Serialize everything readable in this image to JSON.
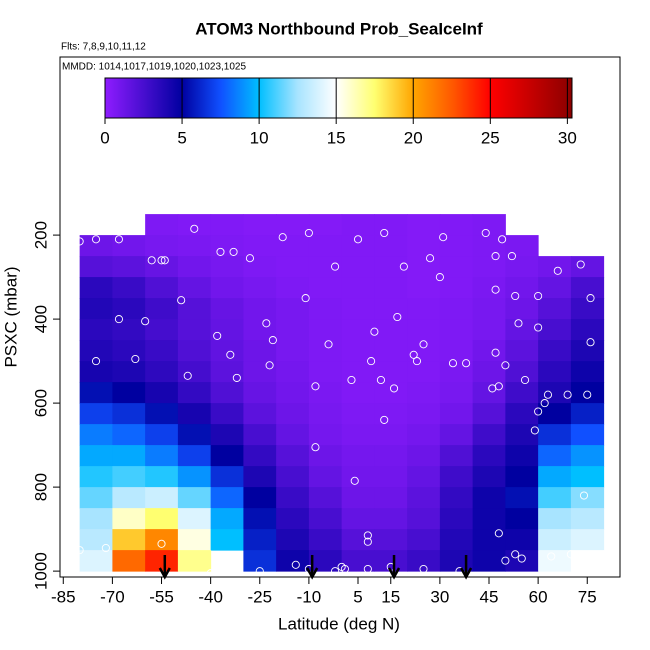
{
  "chart_data": {
    "type": "heatmap",
    "title": "ATOM3 Northbound Prob_SeaIceInf",
    "subtitle": "Flts: 7,8,9,10,11,12",
    "note": "MMDD: 1014,1017,1019,1020,1023,1025",
    "x_label": "Latitude (deg N)",
    "y_label": "PSXC (mbar)",
    "xlim": [
      -86,
      85
    ],
    "ylim": [
      1014,
      -224
    ],
    "xticks": [
      -85,
      -70,
      -55,
      -40,
      -25,
      -10,
      5,
      15,
      30,
      45,
      60,
      75
    ],
    "yticks": [
      200,
      400,
      600,
      800,
      1000
    ],
    "x_edges": [
      -80,
      -70,
      -60,
      -50,
      -40,
      -30,
      -20,
      -10,
      0,
      10,
      20,
      30,
      40,
      50,
      60,
      70,
      80
    ],
    "y_edges": [
      150,
      200,
      250,
      300,
      350,
      400,
      450,
      500,
      550,
      600,
      650,
      700,
      750,
      800,
      850,
      900,
      950,
      1000
    ],
    "values": [
      [
        null,
        null,
        0.6,
        0.5,
        0.5,
        0.4,
        0.4,
        0.4,
        0.5,
        0.5,
        0.4,
        0.5,
        0.6,
        null,
        null,
        null
      ],
      [
        1.2,
        1.0,
        0.8,
        0.7,
        0.6,
        0.5,
        0.5,
        0.5,
        0.5,
        0.5,
        0.4,
        0.5,
        0.6,
        0.7,
        null,
        null
      ],
      [
        2.0,
        1.8,
        1.4,
        1.0,
        0.8,
        0.6,
        0.5,
        0.5,
        0.5,
        0.5,
        0.4,
        0.5,
        0.6,
        0.8,
        1.0,
        1.5
      ],
      [
        3.5,
        3.0,
        2.2,
        1.5,
        1.0,
        0.8,
        0.6,
        0.5,
        0.5,
        0.5,
        0.4,
        0.5,
        0.7,
        1.0,
        1.5,
        2.5
      ],
      [
        3.8,
        3.5,
        2.8,
        2.0,
        1.4,
        1.0,
        0.8,
        0.6,
        0.5,
        0.5,
        0.5,
        0.6,
        0.8,
        1.2,
        2.0,
        3.0
      ],
      [
        3.5,
        3.2,
        2.6,
        2.0,
        1.5,
        1.0,
        0.8,
        0.6,
        0.5,
        0.5,
        0.5,
        0.6,
        0.8,
        1.5,
        2.5,
        3.5
      ],
      [
        3.8,
        3.5,
        3.0,
        2.2,
        1.6,
        1.2,
        0.8,
        0.6,
        0.5,
        0.5,
        0.5,
        0.6,
        1.0,
        1.8,
        3.0,
        4.0
      ],
      [
        4.2,
        4.0,
        3.4,
        2.6,
        1.8,
        1.2,
        0.9,
        0.6,
        0.5,
        0.5,
        0.5,
        0.7,
        1.2,
        2.2,
        3.5,
        4.5
      ],
      [
        5.5,
        5.0,
        4.2,
        3.2,
        2.2,
        1.4,
        1.0,
        0.7,
        0.5,
        0.5,
        0.6,
        0.8,
        1.5,
        2.8,
        4.0,
        5.0
      ],
      [
        7.0,
        6.5,
        5.5,
        4.2,
        3.0,
        1.8,
        1.2,
        0.8,
        0.6,
        0.6,
        0.7,
        1.0,
        2.0,
        3.5,
        5.0,
        6.0
      ],
      [
        8.5,
        8.0,
        7.0,
        5.5,
        4.0,
        2.5,
        1.5,
        0.9,
        0.7,
        0.7,
        0.9,
        1.5,
        2.8,
        4.0,
        6.5,
        7.5
      ],
      [
        9.5,
        9.5,
        8.5,
        7.0,
        5.0,
        3.2,
        2.0,
        1.2,
        0.9,
        0.9,
        1.2,
        2.2,
        3.5,
        4.5,
        8.0,
        9.0
      ],
      [
        10.5,
        11.0,
        10.5,
        9.0,
        6.5,
        4.0,
        2.5,
        1.5,
        1.0,
        1.0,
        1.5,
        2.8,
        4.0,
        5.0,
        9.5,
        10.0
      ],
      [
        11.5,
        13.0,
        13.5,
        11.5,
        8.0,
        5.0,
        3.0,
        2.0,
        1.2,
        1.2,
        1.8,
        3.2,
        4.5,
        5.5,
        11.0,
        12.0
      ],
      [
        12.5,
        16.0,
        17.5,
        14.0,
        9.5,
        5.5,
        3.5,
        2.5,
        1.5,
        1.5,
        2.0,
        3.5,
        4.5,
        5.0,
        12.5,
        13.0
      ],
      [
        13.0,
        19.0,
        21.0,
        15.5,
        10.0,
        6.0,
        4.0,
        3.0,
        2.0,
        2.0,
        2.5,
        3.8,
        4.5,
        4.5,
        13.5,
        14.0
      ],
      [
        14.0,
        22.0,
        24.0,
        17.0,
        null,
        6.5,
        4.5,
        3.5,
        2.5,
        2.5,
        3.0,
        4.0,
        4.5,
        4.0,
        14.5,
        15.0
      ]
    ],
    "colorscale": [
      [
        0,
        "#8f1cff"
      ],
      [
        5,
        "#0000a0"
      ],
      [
        7.5,
        "#1050ff"
      ],
      [
        10,
        "#00bfff"
      ],
      [
        12.5,
        "#a8e4ff"
      ],
      [
        15,
        "#ffffff"
      ],
      [
        17.5,
        "#ffff70"
      ],
      [
        20,
        "#ffa500"
      ],
      [
        22.5,
        "#ff5a00"
      ],
      [
        25,
        "#ff0000"
      ],
      [
        30.3,
        "#8b0000"
      ]
    ],
    "colorbar_lim": [
      0,
      30.3
    ],
    "colorbar_ticks": [
      0,
      5,
      10,
      15,
      20,
      25,
      30
    ],
    "points": {
      "lat": [
        -68,
        -75,
        -80,
        -45,
        -18,
        -10,
        5,
        13,
        31,
        44,
        49,
        52,
        -37,
        -33,
        -55,
        -54,
        -58,
        -28,
        -2,
        19,
        27,
        47,
        30,
        73,
        66,
        53,
        47,
        60,
        -49,
        -11,
        10,
        -68,
        -60,
        -38,
        -23,
        -34,
        -21,
        17,
        23,
        22,
        34,
        54,
        60,
        47,
        -4,
        -63,
        -75,
        -47,
        -22,
        -32,
        9,
        3,
        16,
        38,
        50,
        56,
        -8,
        63,
        69,
        62,
        46,
        12,
        60,
        25,
        48,
        76,
        -8,
        4,
        13,
        75,
        74,
        59,
        76,
        8,
        8,
        48,
        53,
        55,
        64,
        80,
        -80,
        -72,
        -55,
        -40,
        -25,
        -10,
        1,
        15,
        25,
        36,
        50,
        70,
        8,
        0,
        -2,
        -14
      ],
      "p": [
        210,
        210,
        215,
        185,
        205,
        195,
        210,
        195,
        205,
        195,
        210,
        250,
        240,
        240,
        260,
        260,
        260,
        255,
        275,
        275,
        255,
        250,
        300,
        270,
        285,
        345,
        330,
        345,
        355,
        350,
        430,
        400,
        405,
        440,
        410,
        485,
        450,
        395,
        500,
        485,
        505,
        410,
        420,
        480,
        460,
        495,
        500,
        535,
        510,
        540,
        500,
        545,
        565,
        505,
        510,
        545,
        560,
        580,
        580,
        600,
        565,
        545,
        620,
        460,
        560,
        455,
        705,
        785,
        640,
        580,
        820,
        665,
        350,
        915,
        930,
        910,
        960,
        970,
        965,
        960,
        950,
        945,
        935,
        1005,
        1000,
        995,
        995,
        990,
        995,
        1000,
        975,
        960,
        995,
        990,
        1000,
        985
      ],
      "color": "#ffffff"
    },
    "arrows_lat": [
      -54,
      -9,
      16,
      38
    ]
  }
}
